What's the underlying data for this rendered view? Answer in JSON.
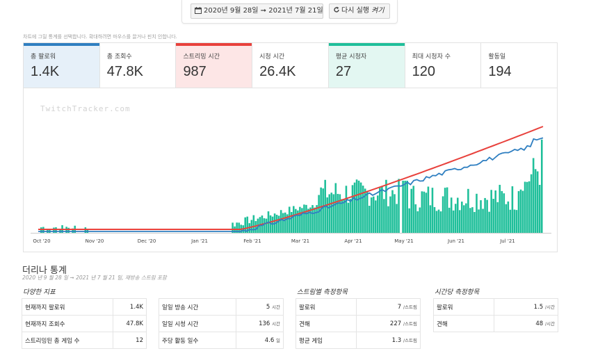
{
  "datebar": {
    "range": "2020년 9월 28일 ➞ 2021년 7월 21일",
    "rerun_label": "다시 실행",
    "rerun_suffix": "켜기"
  },
  "hint": "차트에 그릴 통계를 선택합니다. 확대하려면 마우스를 끌거나 핀치 인합니다.",
  "tabs": [
    {
      "label": "총 팔로워",
      "value": "1.4K",
      "bar_color": "#2f7fc1",
      "bg": "#e6f0f9"
    },
    {
      "label": "총 조회수",
      "value": "47.8K",
      "bar_color": "",
      "bg": "#ffffff"
    },
    {
      "label": "스트리밍 시간",
      "value": "987",
      "bar_color": "#e8413c",
      "bg": "#fde6e6"
    },
    {
      "label": "시청 시간",
      "value": "26.4K",
      "bar_color": "",
      "bg": "#ffffff"
    },
    {
      "label": "평균 시청자",
      "value": "27",
      "bar_color": "#1fbf9a",
      "bg": "#e3f7f2"
    },
    {
      "label": "최대 시청자 수",
      "value": "120",
      "bar_color": "",
      "bg": "#ffffff"
    },
    {
      "label": "활동일",
      "value": "194",
      "bar_color": "",
      "bg": "#ffffff"
    }
  ],
  "watermark": "TwitchTracker.com",
  "chart_data": {
    "type": "bar",
    "x_ticks": [
      "Oct '20",
      "Nov '20",
      "Dec '20",
      "Jan '21",
      "Feb '21",
      "Mar '21",
      "Apr '21",
      "May '21",
      "Jun '21",
      "Jul '21"
    ],
    "series": [
      {
        "name": "총 팔로워",
        "type": "line",
        "color": "#e8413c"
      },
      {
        "name": "스트리밍 시간",
        "type": "line",
        "color": "#2f7fc1"
      },
      {
        "name": "평균 시청자",
        "type": "bar",
        "color": "#1fbf9a"
      }
    ]
  },
  "stats": {
    "title": "더리나 통계",
    "subtitle": "2020 년 9 월 28 일 ➞ 2021 년 7 월 21 일, 재방송 스트림 포함",
    "groups": {
      "various": {
        "title": "다양한 지표",
        "col1": [
          {
            "label": "현재까지 팔로워",
            "value": "1.4K",
            "unit": ""
          },
          {
            "label": "현재까지 조회수",
            "value": "47.8K",
            "unit": ""
          },
          {
            "label": "스트리밍된 총 게임 수",
            "value": "12",
            "unit": ""
          }
        ],
        "col2": [
          {
            "label": "일일 방송 시간",
            "value": "5",
            "unit": "시간"
          },
          {
            "label": "일일 시청 시간",
            "value": "136",
            "unit": "시간"
          },
          {
            "label": "주당 활동 일수",
            "value": "4.6",
            "unit": "일"
          }
        ]
      },
      "per_stream": {
        "title": "스트림별 측정항목",
        "rows": [
          {
            "label": "팔로워",
            "value": "7",
            "unit": "/스트림"
          },
          {
            "label": "견해",
            "value": "227",
            "unit": "/스트림"
          },
          {
            "label": "평균 게임",
            "value": "1.3",
            "unit": "/스트림"
          }
        ]
      },
      "per_hour": {
        "title": "시간당 측정항목",
        "rows": [
          {
            "label": "팔로워",
            "value": "1.5",
            "unit": "/시간"
          },
          {
            "label": "견해",
            "value": "48",
            "unit": "/시간"
          }
        ]
      }
    }
  }
}
